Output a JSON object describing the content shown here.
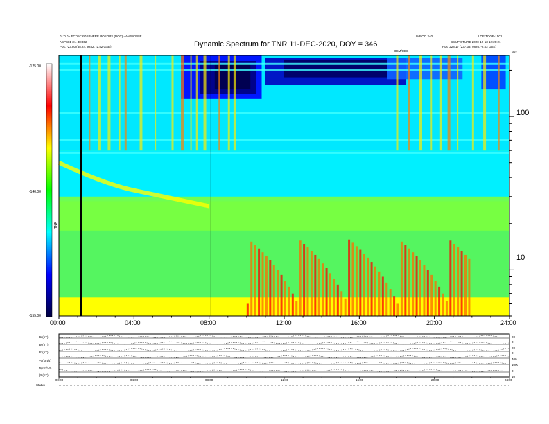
{
  "header": {
    "title": "Dynamic Spectrum for TNR 11-DEC-2020, DOY = 346",
    "left_line1": "01:0.0 - ECD ICROSPHERE POSOPS (DOY) - AMS/CPNE",
    "left_line2": "ASPS81 3:4 48:302",
    "left_line3": "Pos: -23.80 (58.24, 9282, -2.42 GSE)",
    "center_small": "GSM/ODE",
    "right_line1": "IMROO 240",
    "right_line2": "LOE/TOOP-1501",
    "right_line3": "BS:LPICTURE 2020-12-13 12:20:21",
    "right_line4": "Pos: 228.17 (237.33, 9826, -2.02 GSE)"
  },
  "colorbar": {
    "labels": [
      "-125.00",
      "-140.00",
      "-155.00"
    ],
    "unit_label": "TNR"
  },
  "chart_data": {
    "type": "heatmap",
    "title": "Dynamic Spectrum for TNR 11-DEC-2020, DOY = 346",
    "x_ticks": [
      "00:00",
      "04:00",
      "08:00",
      "12:00",
      "16:00",
      "20:00",
      "24:00"
    ],
    "xlim": [
      0,
      24
    ],
    "y_scale": "log",
    "y_ticks": [
      10,
      100
    ],
    "y_top_label": "kHz",
    "color_range": [
      -155.0,
      -125.0
    ],
    "colormap": [
      "#ffffff",
      "#ff0000",
      "#ffff00",
      "#00ff00",
      "#00ffff",
      "#0000ff",
      "#000040"
    ],
    "vertical_markers_hours": [
      1.2,
      8.1
    ]
  },
  "lower_panel": {
    "row_labels": [
      "Bx(nT)",
      "By(nT)",
      "Bz(nT)",
      "Vx(km/s)",
      "N(cm^-3)",
      "|B|(nT)"
    ],
    "right_labels": [
      "20",
      "0",
      "20",
      "0",
      "400",
      "1000",
      "0",
      "10"
    ],
    "x_ticks": [
      "00:00",
      "04:00",
      "08:00",
      "12:00",
      "16:00",
      "20:00",
      "24:00"
    ],
    "footer_label": "Status"
  }
}
